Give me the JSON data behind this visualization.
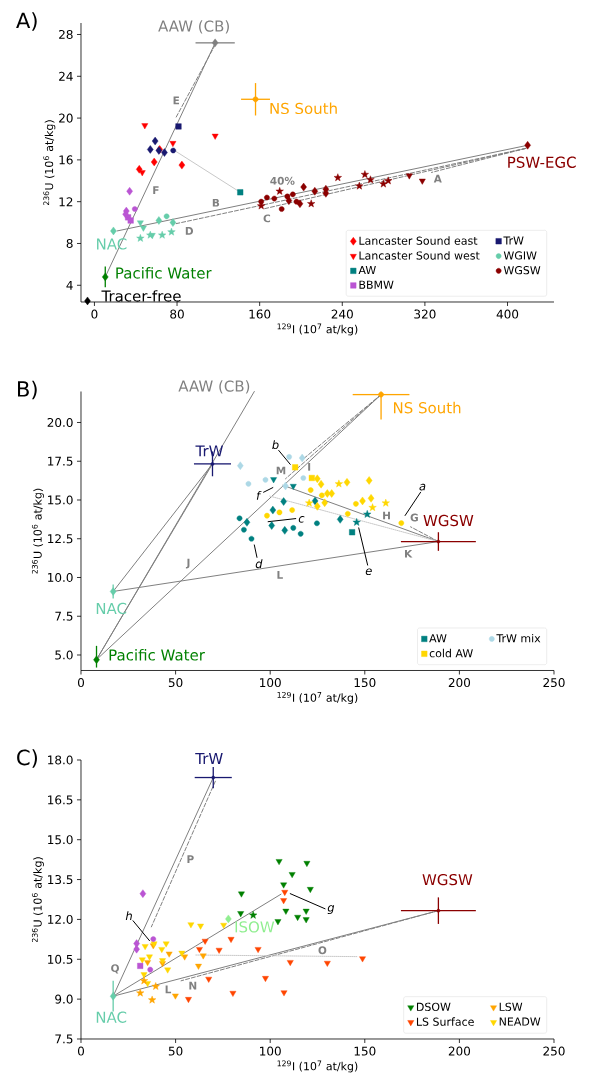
{
  "chart_data": [
    {
      "type": "scatter",
      "title": "A)",
      "xlabel": "$^{129}$I (10$^{7}$ at/kg)",
      "ylabel": "$^{236}$U (10$^{6}$ at/kg)",
      "xlim": [
        -13,
        445
      ],
      "ylim": [
        2.4,
        29.1
      ],
      "xticks": [
        0,
        80,
        160,
        240,
        320,
        400
      ],
      "yticks": [
        4,
        8,
        12,
        16,
        20,
        24,
        28
      ],
      "legend": "bottom right",
      "series": [
        {
          "type": "line",
          "color": "#808080",
          "line_style": "solid",
          "x": [
            116.9,
            10.5
          ],
          "values": [
            27.2,
            4.8
          ]
        },
        {
          "type": "line",
          "color": "#808080",
          "line_style": "solid",
          "x": [
            419.5,
            22.0
          ],
          "values": [
            17.4,
            9.2
          ]
        },
        {
          "type": "line",
          "color": "#808080",
          "line_style": "dashed",
          "x": [
            116.9,
            79.2
          ],
          "values": [
            27.0,
            20.1
          ]
        },
        {
          "type": "line",
          "color": "#808080",
          "line_style": "dashed",
          "x": [
            417.7,
            326.4
          ],
          "values": [
            17.1,
            14.8
          ]
        },
        {
          "type": "line",
          "color": "#808080",
          "line_style": "dashed",
          "x": [
            417.7,
            163.4
          ],
          "values": [
            17.1,
            11.3
          ]
        },
        {
          "type": "line",
          "color": "#808080",
          "line_style": "dashed",
          "x": [
            417.7,
            79.2
          ],
          "values": [
            17.1,
            9.9
          ]
        },
        {
          "type": "line",
          "color": "#c8c8c8",
          "line_style": "solid",
          "x": [
            77.5,
            141.2
          ],
          "values": [
            16.9,
            12.9
          ]
        },
        {
          "type": "scatter",
          "name": "AAW (CB)",
          "color": "#808080",
          "marker": "diamond",
          "x": [
            116.9
          ],
          "values": [
            27.2
          ],
          "xerrors": [
            19
          ]
        },
        {
          "type": "scatter",
          "name": "NS South",
          "color": "#ffa500",
          "marker": "circle",
          "x": [
            156
          ],
          "values": [
            21.8
          ],
          "xerrors": [
            14
          ],
          "errors": [
            1.55
          ]
        },
        {
          "type": "scatter",
          "name": "PSW-EGC",
          "color": "#8b0000",
          "marker": "diamond",
          "x": [
            419.5
          ],
          "values": [
            17.4
          ]
        },
        {
          "type": "scatter",
          "name": "Pacific Water",
          "color": "#008000",
          "marker": "diamond",
          "x": [
            10.5
          ],
          "values": [
            4.8
          ],
          "errors": [
            1.0
          ]
        },
        {
          "type": "scatter",
          "name": "NAC",
          "color": "#66cdaa",
          "marker": "diamond",
          "x": [
            18.4
          ],
          "values": [
            9.2
          ]
        },
        {
          "type": "scatter",
          "name": "Tracer-free",
          "color": "#000000",
          "marker": "diamond",
          "x": [
            -6.7
          ],
          "values": [
            2.5
          ]
        },
        {
          "type": "scatter",
          "name": "Lancaster Sound east",
          "color": "#ff0000",
          "marker": "diamond",
          "x": [
            43.4,
            57.9,
            63.2,
            84.7
          ],
          "values": [
            15.1,
            15.8,
            17.0,
            15.5
          ]
        },
        {
          "type": "scatter",
          "name": "TrW",
          "color": "#191970",
          "marker": "square",
          "x": [
            81.4
          ],
          "values": [
            19.2
          ]
        },
        {
          "type": "scatter",
          "name": "Lancaster Sound west",
          "color": "#ff0000",
          "marker": "triangle",
          "x": [
            48.8,
            116.9,
            76.0,
            46.3
          ],
          "values": [
            19.3,
            18.3,
            17.6,
            14.8
          ]
        },
        {
          "type": "scatter",
          "name": "WGIW",
          "color": "#66cdaa",
          "marker": "circle",
          "x": [
            69.9
          ],
          "values": [
            10.6
          ]
        },
        {
          "type": "scatter",
          "name": "AW",
          "color": "#008080",
          "marker": "square",
          "x": [
            141.2
          ],
          "values": [
            12.9
          ]
        },
        {
          "type": "scatter",
          "name": "WGSW",
          "color": "#8b0000",
          "marker": "circle",
          "x": [
            167,
            174.2,
            181.3,
            192.1,
            195.7,
            186.8,
            161.5
          ],
          "values": [
            12.4,
            12.3,
            11.3,
            12.7,
            12.0,
            12.5,
            12.0
          ]
        },
        {
          "type": "scatter",
          "name": "BBMW",
          "color": "#ba55d3",
          "marker": "square",
          "x": [
            32.6,
            35.1
          ],
          "values": [
            10.5,
            10.2
          ]
        },
        {
          "type": "scatter",
          "color": "#ba55d3",
          "marker": "diamond",
          "x": [
            34.1,
            30.9,
            30.2
          ],
          "values": [
            13.0,
            11.1,
            10.8
          ]
        },
        {
          "type": "scatter",
          "color": "#ba55d3",
          "marker": "circle",
          "x": [
            39.1
          ],
          "values": [
            11.3
          ]
        },
        {
          "type": "scatter",
          "color": "#191970",
          "marker": "diamond",
          "x": [
            58.8,
            54.1,
            62.4,
            67.8
          ],
          "values": [
            17.8,
            17.0,
            16.9,
            16.7
          ]
        },
        {
          "type": "scatter",
          "color": "#191970",
          "marker": "circle",
          "x": [
            76.3
          ],
          "values": [
            16.9
          ]
        },
        {
          "type": "scatter",
          "color": "#66cdaa",
          "marker": "triangle",
          "x": [
            44.5,
            47.4,
            56.0
          ],
          "values": [
            10.0,
            9.5,
            8.8
          ]
        },
        {
          "type": "scatter",
          "color": "#66cdaa",
          "marker": "star",
          "x": [
            44.5,
            54.1,
            65.6,
            74.6
          ],
          "values": [
            8.5,
            8.8,
            8.8,
            9.1
          ]
        },
        {
          "type": "scatter",
          "color": "#66cdaa",
          "marker": "diamond",
          "x": [
            62.4,
            76.0
          ],
          "values": [
            10.2,
            10.0
          ]
        },
        {
          "type": "scatter",
          "color": "#8b0000",
          "marker": "star",
          "x": [
            235.7,
            261.9,
            267.3,
            256.5,
            279.8,
            284.5,
            209.9,
            179.4,
            161.5
          ],
          "values": [
            14.3,
            14.6,
            14.1,
            13.5,
            13.7,
            14.0,
            11.8,
            13.0,
            11.6
          ]
        },
        {
          "type": "scatter",
          "color": "#8b0000",
          "marker": "diamond",
          "x": [
            202.6,
            213.4,
            224.1,
            224.1,
            199.0,
            188.3
          ],
          "values": [
            13.4,
            13.0,
            13.2,
            12.8,
            11.8,
            12.1
          ]
        },
        {
          "type": "scatter",
          "color": "#8b0000",
          "marker": "triangle",
          "x": [
            304.9,
            317.5
          ],
          "values": [
            14.5,
            14.0
          ]
        }
      ],
      "annotations": [
        "E",
        "F",
        "B",
        "C",
        "D",
        "A",
        "40%"
      ]
    },
    {
      "type": "scatter",
      "title": "B)",
      "xlabel": "$^{129}$I (10$^{7}$ at/kg)",
      "ylabel": "$^{236}$U (10$^{6}$ at/kg)",
      "xlim": [
        0,
        250
      ],
      "ylim": [
        4,
        22
      ],
      "xticks": [
        0,
        50,
        100,
        150,
        200,
        250
      ],
      "yticks": [
        {
          "value": 5,
          "label": "5.0"
        },
        7.5,
        {
          "value": 10,
          "label": "10.0"
        },
        12.5,
        {
          "value": 15,
          "label": "15.0"
        },
        17.5,
        {
          "value": 20,
          "label": "20.0"
        }
      ],
      "legend": "bottom right",
      "series": [
        {
          "type": "line",
          "color": "#808080",
          "line_style": "solid",
          "x": [
            8.2,
            91.6
          ],
          "values": [
            4.7,
            22.0
          ]
        },
        {
          "type": "line",
          "color": "#808080",
          "line_style": "solid",
          "x": [
            17,
            69.5
          ],
          "values": [
            9.1,
            17.33
          ]
        },
        {
          "type": "line",
          "color": "#808080",
          "line_style": "solid",
          "x": [
            8.2,
            69.5
          ],
          "values": [
            4.7,
            17.33
          ]
        },
        {
          "type": "line",
          "color": "#808080",
          "line_style": "solid",
          "x": [
            8.2,
            158.6
          ],
          "values": [
            4.7,
            21.8
          ]
        },
        {
          "type": "line",
          "color": "#808080",
          "line_style": "solid",
          "x": [
            17,
            188.9
          ],
          "values": [
            9.1,
            12.32
          ]
        },
        {
          "type": "line",
          "color": "#808080",
          "line_style": "solid",
          "x": [
            188.9,
            106.7
          ],
          "values": [
            12.32,
            15.95
          ]
        },
        {
          "type": "line",
          "color": "#c8c8c8",
          "line_style": "dotted",
          "x": [
            188.9,
            99.8
          ],
          "values": [
            12.32,
            15.25
          ]
        },
        {
          "type": "line",
          "color": "#808080",
          "line_style": "dashed",
          "x": [
            158.6,
            108.1
          ],
          "values": [
            21.8,
            16.37
          ]
        },
        {
          "type": "line",
          "color": "#808080",
          "line_style": "dashed",
          "x": [
            158.6,
            118.0
          ],
          "values": [
            21.8,
            17.7
          ]
        },
        {
          "type": "line",
          "color": "#808080",
          "line_style": "dashed",
          "x": [
            188.9,
            174.2
          ],
          "values": [
            12.32,
            13.27
          ]
        },
        {
          "type": "line",
          "color": "#000000",
          "line_style": "solid",
          "x": [
            179.5,
            171.3
          ],
          "values": [
            15.5,
            14.0
          ]
        },
        {
          "type": "line",
          "color": "#000000",
          "line_style": "solid",
          "x": [
            104.5,
            110.6
          ],
          "values": [
            18.2,
            17.3
          ]
        },
        {
          "type": "line",
          "color": "#000000",
          "line_style": "solid",
          "x": [
            113.5,
            98.9
          ],
          "values": [
            13.8,
            13.6
          ]
        },
        {
          "type": "line",
          "color": "#000000",
          "line_style": "solid",
          "x": [
            93.0,
            91.6
          ],
          "values": [
            11.3,
            12.1
          ]
        },
        {
          "type": "line",
          "color": "#000000",
          "line_style": "solid",
          "x": [
            151.5,
            146.8
          ],
          "values": [
            10.8,
            13.2
          ]
        },
        {
          "type": "line",
          "color": "#000000",
          "line_style": "solid",
          "x": [
            96.5,
            101.4
          ],
          "values": [
            15.5,
            15.8
          ]
        },
        {
          "type": "scatter",
          "name": "TrW",
          "color": "#191970",
          "marker": "none",
          "x": [
            69.5
          ],
          "values": [
            17.33
          ],
          "xerrors": [
            9.8
          ],
          "errors": [
            0.8
          ]
        },
        {
          "type": "scatter",
          "name": "NS South",
          "color": "#ffa500",
          "marker": "circle",
          "x": [
            158.6
          ],
          "values": [
            21.8
          ],
          "xerrors": [
            15
          ],
          "errors": [
            [
              20.2,
              22.0
            ]
          ]
        },
        {
          "type": "scatter",
          "name": "WGSW",
          "color": "#8b0000",
          "marker": "none",
          "x": [
            188.9
          ],
          "values": [
            12.32
          ],
          "xerrors": [
            19.8
          ],
          "errors": [
            0.6
          ]
        },
        {
          "type": "scatter",
          "name": "NAC",
          "color": "#66cdaa",
          "marker": "diamond",
          "x": [
            17
          ],
          "values": [
            9.1
          ],
          "errors": [
            0.45
          ]
        },
        {
          "type": "scatter",
          "name": "Pacific Water",
          "color": "#008000",
          "marker": "diamond",
          "x": [
            8.2
          ],
          "values": [
            4.69
          ],
          "errors": [
            [
              4.19,
              5.59
            ]
          ]
        },
        {
          "type": "scatter",
          "name": "AW",
          "color": "#008080",
          "marker": "square",
          "x": [
            143.3
          ],
          "values": [
            12.92
          ]
        },
        {
          "type": "scatter",
          "name": "TrW mix",
          "color": "#add8e6",
          "marker": "circle",
          "x": [
            88.5,
            97.5,
            110,
            117.5
          ],
          "values": [
            16.04,
            16.3,
            17.78,
            16.42
          ]
        },
        {
          "type": "scatter",
          "name": "cold AW",
          "color": "#ffd700",
          "marker": "square",
          "x": [
            113.2,
            122
          ],
          "values": [
            17.11,
            16.42
          ]
        },
        {
          "type": "scatter",
          "color": "#add8e6",
          "marker": "diamond",
          "x": [
            84.2,
            116.9,
            108.1
          ],
          "values": [
            17.21,
            17.71,
            15.9
          ]
        },
        {
          "type": "scatter",
          "color": "#008080",
          "marker": "circle",
          "x": [
            83.8,
            86.1,
            90.1,
            112.2,
            116.1,
            124.7
          ],
          "values": [
            13.82,
            13.08,
            12.5,
            13.2,
            12.82,
            13.5
          ]
        },
        {
          "type": "scatter",
          "color": "#008080",
          "marker": "diamond",
          "x": [
            87.7,
            100.8,
            107.7,
            107.1,
            101.4,
            137,
            123.7
          ],
          "values": [
            13.56,
            13.35,
            13.04,
            14.9,
            14.35,
            13.75,
            14.94
          ]
        },
        {
          "type": "scatter",
          "color": "#008080",
          "marker": "triangle",
          "x": [
            101.8,
            112.2
          ],
          "values": [
            16.33,
            15.9
          ]
        },
        {
          "type": "scatter",
          "color": "#008080",
          "marker": "star",
          "x": [
            145.7,
            151.3
          ],
          "values": [
            13.56,
            14.08
          ]
        },
        {
          "type": "scatter",
          "color": "#ffd700",
          "marker": "circle",
          "x": [
            98.3,
            104.9,
            111.6,
            121.4,
            127.3,
            141,
            145.3,
            169.3
          ],
          "values": [
            13.99,
            14.2,
            14.35,
            15.64,
            15.3,
            14.11,
            14.75,
            13.51
          ]
        },
        {
          "type": "scatter",
          "color": "#ffd700",
          "marker": "diamond",
          "x": [
            124.9,
            126.9,
            130.2,
            132.5,
            124.9,
            128.8,
            140.6,
            148.8,
            152.3,
            153.3
          ],
          "values": [
            16.37,
            16.02,
            15.42,
            15.42,
            14.59,
            14.82,
            16.14,
            14.94,
            16.26,
            15.11
          ]
        },
        {
          "type": "scatter",
          "color": "#ffd700",
          "marker": "star",
          "x": [
            136.3,
            120.6,
            154.1,
            161.1
          ],
          "values": [
            16.04,
            14.8,
            14.51,
            14.8
          ]
        }
      ],
      "annotations": [
        "M",
        "I",
        "H",
        "G",
        "K",
        "J",
        "L",
        "a",
        "b",
        "c",
        "d",
        "e",
        "f",
        "AAW (CB)"
      ]
    },
    {
      "type": "scatter",
      "title": "C)",
      "xlabel": "$^{129}$I (10$^{7}$ at/kg)",
      "ylabel": "$^{236}$U (10$^{6}$ at/kg)",
      "xlim": [
        0,
        250
      ],
      "ylim": [
        7.5,
        18
      ],
      "xticks": [
        0,
        50,
        100,
        150,
        200,
        250
      ],
      "yticks": [
        7.5,
        {
          "value": 9,
          "label": "9.0"
        },
        10.5,
        {
          "value": 12,
          "label": "12.0"
        },
        13.5,
        {
          "value": 15,
          "label": "15.0"
        },
        16.5,
        {
          "value": 18,
          "label": "18.0"
        }
      ],
      "legend": "bottom right",
      "series": [
        {
          "type": "line",
          "color": "#808080",
          "line_style": "solid",
          "x": [
            17,
            69.9
          ],
          "values": [
            9.11,
            17.34
          ]
        },
        {
          "type": "line",
          "color": "#808080",
          "line_style": "dashed",
          "x": [
            71,
            37.2
          ],
          "values": [
            17.2,
            11.72
          ]
        },
        {
          "type": "line",
          "color": "#808080",
          "line_style": "solid",
          "x": [
            17,
            105.7
          ],
          "values": [
            9.11,
            12.95
          ]
        },
        {
          "type": "line",
          "color": "#808080",
          "line_style": "solid",
          "x": [
            17,
            188.9
          ],
          "values": [
            9.11,
            12.33
          ]
        },
        {
          "type": "line",
          "color": "#808080",
          "line_style": "dashed",
          "x": [
            188.9,
            52.9
          ],
          "values": [
            12.33,
            9.69
          ]
        },
        {
          "type": "line",
          "color": "#c8c8c8",
          "line_style": "dotted",
          "x": [
            60.7,
            146.0
          ],
          "values": [
            10.66,
            10.6
          ]
        },
        {
          "type": "line",
          "color": "#000000",
          "line_style": "solid",
          "x": [
            27.5,
            36.2
          ],
          "values": [
            11.95,
            11.2
          ]
        },
        {
          "type": "line",
          "color": "#000000",
          "line_style": "solid",
          "x": [
            129,
            110.6
          ],
          "values": [
            12.4,
            12.97
          ]
        },
        {
          "type": "scatter",
          "name": "TrW",
          "color": "#191970",
          "marker": "none",
          "x": [
            69.9
          ],
          "values": [
            17.34
          ],
          "xerrors": [
            9.8
          ],
          "errors": [
            0.4
          ]
        },
        {
          "type": "scatter",
          "name": "WGSW",
          "color": "#8b0000",
          "marker": "none",
          "x": [
            188.9
          ],
          "values": [
            12.33
          ],
          "xerrors": [
            19.8
          ],
          "errors": [
            0.5
          ]
        },
        {
          "type": "scatter",
          "name": "NAC",
          "color": "#66cdaa",
          "marker": "diamond",
          "x": [
            17
          ],
          "values": [
            9.11
          ],
          "errors": [
            0.58
          ]
        },
        {
          "type": "scatter",
          "name": "ISOW",
          "color": "#90ee90",
          "marker": "diamond",
          "x": [
            77.9
          ],
          "values": [
            12.02
          ]
        },
        {
          "type": "scatter",
          "name": "DSOW",
          "color": "#008000",
          "marker": "triangle",
          "x": [
            104.7,
            119.4,
            111.6,
            84.8,
            107.1,
            121.2,
            84.4,
            108.3,
            119,
            114.5,
            104.1,
            119
          ],
          "values": [
            14.19,
            14.12,
            13.7,
            12.97,
            13.31,
            13.14,
            12.23,
            12.32,
            12.32,
            12.09,
            11.93,
            12.0
          ]
        },
        {
          "type": "scatter",
          "name": "LSW",
          "color": "#ffa500",
          "marker": "triangle",
          "x": [
            49.9,
            62.1,
            38.2,
            46.6,
            54.8,
            64.6,
            35.2,
            43.1
          ],
          "values": [
            9.13,
            10.25,
            11.02,
            10.71,
            10.6,
            10.64,
            10.39,
            10.35
          ]
        },
        {
          "type": "scatter",
          "name": "LS Surface",
          "color": "#ff4500",
          "marker": "triangle",
          "x": [
            107.7,
            107.1,
            65.6,
            79.3,
            73,
            62.6,
            93.6,
            110.6,
            130.2,
            148.8,
            67.5,
            97.5,
            80.3,
            107.3,
            56.8
          ],
          "values": [
            13.03,
            12.72,
            11.19,
            11.26,
            10.85,
            10.88,
            10.88,
            10.39,
            10.36,
            10.53,
            9.76,
            9.79,
            9.23,
            9.25,
            9.0
          ]
        },
        {
          "type": "scatter",
          "name": "NEADW",
          "color": "#ffd700",
          "marker": "triangle",
          "x": [
            58.1,
            63.2,
            75.4,
            33.9,
            38.6,
            45,
            42.7,
            32.4,
            36.2,
            43.1,
            45.8,
            33.3,
            35.2,
            53.3
          ],
          "values": [
            11.81,
            11.76,
            11.79,
            10.99,
            11.09,
            11.09,
            10.88,
            10.49,
            10.6,
            10.46,
            10.11,
            9.93,
            9.6,
            10.74
          ]
        },
        {
          "type": "scatter",
          "color": "#008000",
          "marker": "star",
          "x": [
            91
          ],
          "values": [
            12.16
          ]
        },
        {
          "type": "scatter",
          "color": "#ffa500",
          "marker": "star",
          "x": [
            31.3,
            37.6,
            39.5,
            33.3
          ],
          "values": [
            9.23,
            8.97,
            9.48,
            9.69
          ]
        },
        {
          "type": "scatter",
          "color": "#ba55d3",
          "marker": "diamond",
          "x": [
            32.7,
            29.4,
            29.4
          ],
          "values": [
            12.97,
            11.09,
            10.88
          ]
        },
        {
          "type": "scatter",
          "color": "#ba55d3",
          "marker": "circle",
          "x": [
            38.2,
            36.6
          ],
          "values": [
            11.26,
            10.11
          ]
        },
        {
          "type": "scatter",
          "color": "#ba55d3",
          "marker": "square",
          "x": [
            31.3
          ],
          "values": [
            10.25
          ]
        }
      ],
      "annotations": [
        "P",
        "Q",
        "L",
        "N",
        "O",
        "h",
        "g"
      ]
    }
  ]
}
